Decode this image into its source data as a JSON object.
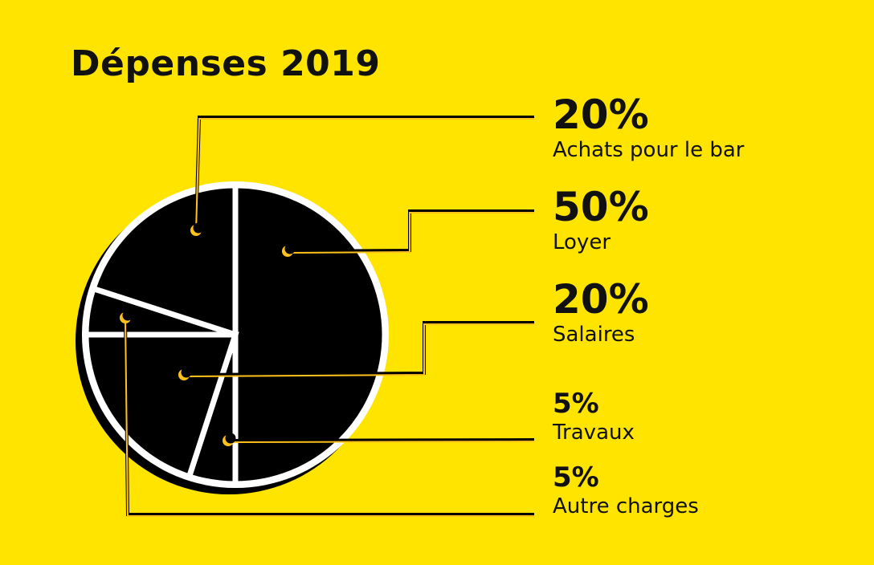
{
  "colors": {
    "background": "#FFE400",
    "slice_fill": "#000000",
    "slice_stroke": "#FFFFFF",
    "leader_line": "#000000",
    "marker": "#FFC21A"
  },
  "chart_data": {
    "type": "pie",
    "title": "Dépenses 2019",
    "slices": [
      {
        "label": "Loyer",
        "value": 50,
        "value_label": "50%"
      },
      {
        "label": "Travaux",
        "value": 5,
        "value_label": "5%"
      },
      {
        "label": "Salaires",
        "value": 20,
        "value_label": "20%"
      },
      {
        "label": "Autre charges",
        "value": 5,
        "value_label": "5%"
      },
      {
        "label": "Achats pour le bar",
        "value": 20,
        "value_label": "20%"
      }
    ],
    "legend_order": [
      "Achats pour le bar",
      "Loyer",
      "Salaires",
      "Travaux",
      "Autre charges"
    ],
    "legend_placement": "right"
  }
}
